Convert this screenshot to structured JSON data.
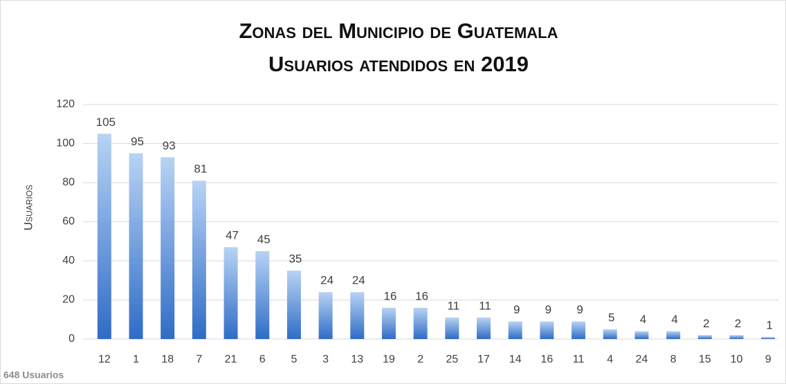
{
  "chart_data": {
    "type": "bar",
    "title": "Zonas del Municipio de Guatemala",
    "subtitle": "Usuarios atendidos en 2019",
    "y_label": "Usuarios",
    "footnote": "648 Usuarios",
    "categories": [
      "12",
      "1",
      "18",
      "7",
      "21",
      "6",
      "5",
      "3",
      "13",
      "19",
      "2",
      "25",
      "17",
      "14",
      "16",
      "11",
      "4",
      "24",
      "8",
      "15",
      "10",
      "9"
    ],
    "values": [
      105,
      95,
      93,
      81,
      47,
      45,
      35,
      24,
      24,
      16,
      16,
      11,
      11,
      9,
      9,
      9,
      5,
      4,
      4,
      2,
      2,
      1
    ],
    "color": "#2f6cc6",
    "ylim": [
      0,
      120
    ],
    "yticks": [
      0,
      20,
      40,
      60,
      80,
      100,
      120
    ],
    "grid": true
  }
}
